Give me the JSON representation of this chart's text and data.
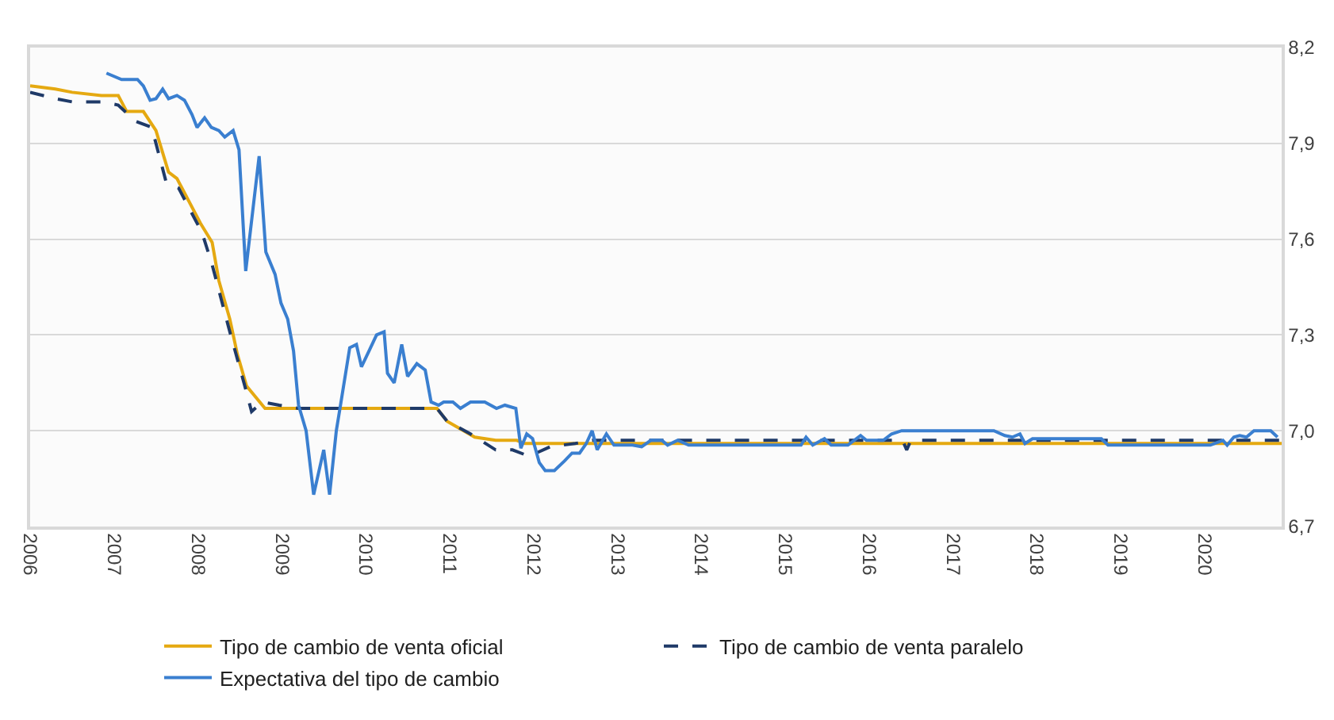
{
  "chart_data": {
    "type": "line",
    "xlim": [
      2006,
      2020.92
    ],
    "xticks": [
      2006,
      2007,
      2008,
      2009,
      2010,
      2011,
      2012,
      2013,
      2014,
      2015,
      2016,
      2017,
      2018,
      2019,
      2020
    ],
    "ylim": [
      6.7,
      8.2
    ],
    "yticks": [
      {
        "value": 6.7,
        "label": "6,7"
      },
      {
        "value": 7.0,
        "label": "7,0"
      },
      {
        "value": 7.3,
        "label": "7,3"
      },
      {
        "value": 7.6,
        "label": "7,6"
      },
      {
        "value": 7.9,
        "label": "7,9"
      },
      {
        "value": 8.2,
        "label": "8,2"
      }
    ],
    "grid": "y",
    "legend": "bottom",
    "series": [
      {
        "name": "Tipo de cambio de venta oficial",
        "color": "#e5a911",
        "line_style": "solid",
        "x": [
          2006.0,
          2006.3,
          2006.5,
          2006.85,
          2007.05,
          2007.15,
          2007.35,
          2007.5,
          2007.65,
          2007.75,
          2007.85,
          2008.03,
          2008.17,
          2008.25,
          2008.38,
          2008.47,
          2008.58,
          2008.8,
          2010.85,
          2010.97,
          2011.3,
          2011.55,
          2011.8,
          2011.9,
          2020.92
        ],
        "values": [
          8.08,
          8.07,
          8.06,
          8.05,
          8.05,
          8.0,
          8.0,
          7.94,
          7.81,
          7.79,
          7.74,
          7.65,
          7.59,
          7.47,
          7.35,
          7.24,
          7.14,
          7.07,
          7.07,
          7.03,
          6.98,
          6.97,
          6.97,
          6.96,
          6.96
        ]
      },
      {
        "name": "Tipo de cambio de venta paralelo",
        "color": "#1f3a68",
        "line_style": "dashed",
        "x": [
          2006.0,
          2006.3,
          2006.5,
          2006.85,
          2007.05,
          2007.25,
          2007.45,
          2007.62,
          2007.77,
          2008.05,
          2008.17,
          2008.37,
          2008.57,
          2008.64,
          2008.77,
          2008.97,
          2009.2,
          2010.85,
          2010.97,
          2011.25,
          2011.55,
          2011.75,
          2011.95,
          2012.2,
          2012.5,
          2012.7,
          2016.4,
          2016.45,
          2016.5,
          2020.92
        ],
        "values": [
          8.06,
          8.04,
          8.03,
          8.03,
          8.02,
          7.97,
          7.95,
          7.78,
          7.76,
          7.62,
          7.52,
          7.32,
          7.13,
          7.06,
          7.09,
          7.08,
          7.07,
          7.07,
          7.03,
          6.99,
          6.94,
          6.94,
          6.92,
          6.95,
          6.96,
          6.97,
          6.97,
          6.94,
          6.97,
          6.97
        ]
      },
      {
        "name": "Expectativa del tipo de cambio",
        "color": "#3a7fd0",
        "line_style": "solid",
        "x": [
          2006.91,
          2007.09,
          2007.17,
          2007.28,
          2007.35,
          2007.43,
          2007.5,
          2007.58,
          2007.65,
          2007.75,
          2007.84,
          2007.93,
          2007.99,
          2008.08,
          2008.16,
          2008.25,
          2008.32,
          2008.42,
          2008.49,
          2008.57,
          2008.73,
          2008.81,
          2008.92,
          2008.99,
          2009.07,
          2009.14,
          2009.2,
          2009.29,
          2009.38,
          2009.5,
          2009.57,
          2009.65,
          2009.7,
          2009.81,
          2009.89,
          2009.95,
          2010.04,
          2010.13,
          2010.22,
          2010.26,
          2010.34,
          2010.43,
          2010.5,
          2010.61,
          2010.71,
          2010.78,
          2010.87,
          2010.93,
          2011.04,
          2011.13,
          2011.25,
          2011.42,
          2011.56,
          2011.66,
          2011.79,
          2011.85,
          2011.92,
          2011.99,
          2012.07,
          2012.14,
          2012.25,
          2012.37,
          2012.46,
          2012.55,
          2012.63,
          2012.7,
          2012.76,
          2012.87,
          2012.96,
          2013.18,
          2013.29,
          2013.4,
          2013.53,
          2013.6,
          2013.72,
          2013.85,
          2015.19,
          2015.25,
          2015.33,
          2015.47,
          2015.55,
          2015.75,
          2015.9,
          2015.97,
          2016.07,
          2016.17,
          2016.27,
          2016.39,
          2017.49,
          2017.62,
          2017.71,
          2017.8,
          2017.86,
          2017.95,
          2018.77,
          2018.85,
          2020.07,
          2020.22,
          2020.27,
          2020.35,
          2020.42,
          2020.5,
          2020.59,
          2020.79,
          2020.87
        ],
        "values": [
          8.12,
          8.1,
          8.1,
          8.1,
          8.08,
          8.035,
          8.04,
          8.07,
          8.04,
          8.05,
          8.035,
          7.99,
          7.95,
          7.98,
          7.95,
          7.94,
          7.92,
          7.94,
          7.88,
          7.5,
          7.86,
          7.56,
          7.49,
          7.4,
          7.35,
          7.25,
          7.08,
          7.0,
          6.8,
          6.94,
          6.8,
          7.0,
          7.08,
          7.26,
          7.27,
          7.2,
          7.25,
          7.3,
          7.31,
          7.18,
          7.15,
          7.27,
          7.17,
          7.21,
          7.19,
          7.09,
          7.08,
          7.09,
          7.09,
          7.07,
          7.09,
          7.09,
          7.07,
          7.08,
          7.07,
          6.945,
          6.99,
          6.975,
          6.9,
          6.875,
          6.875,
          6.905,
          6.93,
          6.93,
          6.96,
          7.0,
          6.94,
          6.99,
          6.955,
          6.955,
          6.95,
          6.97,
          6.97,
          6.955,
          6.97,
          6.955,
          6.955,
          6.98,
          6.955,
          6.975,
          6.955,
          6.955,
          6.985,
          6.97,
          6.97,
          6.97,
          6.99,
          7.0,
          7.0,
          6.985,
          6.98,
          6.99,
          6.96,
          6.975,
          6.975,
          6.955,
          6.955,
          6.97,
          6.955,
          6.98,
          6.985,
          6.98,
          7.0,
          7.0,
          6.98
        ]
      }
    ]
  }
}
